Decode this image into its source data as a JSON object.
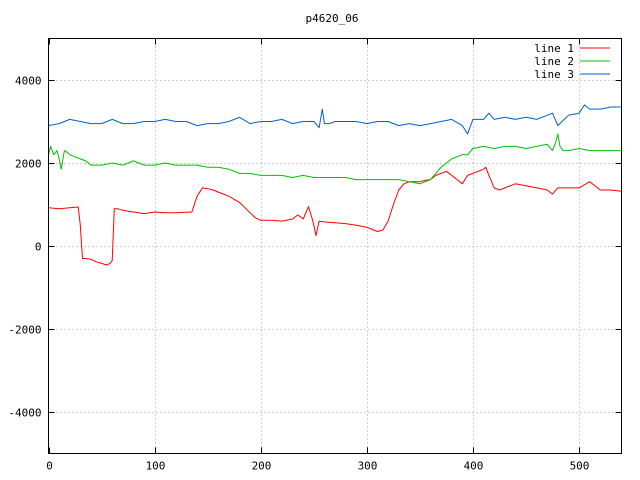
{
  "chart_data": {
    "type": "line",
    "title": "p4620_06",
    "xlabel": "",
    "ylabel": "",
    "xlim": [
      0,
      540
    ],
    "ylim": [
      -5000,
      5000
    ],
    "xticks": [
      0,
      100,
      200,
      300,
      400,
      500
    ],
    "yticks": [
      -4000,
      -2000,
      0,
      2000,
      4000
    ],
    "grid": true,
    "legend": "top-right",
    "series": [
      {
        "name": "line 1",
        "color": "#ff0000",
        "x": [
          0,
          10,
          20,
          28,
          30,
          32,
          35,
          40,
          45,
          50,
          55,
          58,
          60,
          62,
          65,
          70,
          80,
          90,
          100,
          110,
          120,
          135,
          140,
          145,
          150,
          155,
          160,
          170,
          180,
          190,
          195,
          200,
          210,
          220,
          230,
          235,
          240,
          245,
          248,
          250,
          252,
          255,
          260,
          270,
          280,
          290,
          300,
          305,
          310,
          315,
          320,
          325,
          330,
          335,
          340,
          345,
          350,
          355,
          360,
          365,
          370,
          375,
          380,
          385,
          390,
          395,
          400,
          405,
          410,
          412,
          415,
          420,
          425,
          430,
          440,
          450,
          460,
          470,
          475,
          480,
          490,
          500,
          510,
          520,
          530,
          540
        ],
        "values": [
          920,
          900,
          920,
          940,
          500,
          -300,
          -300,
          -320,
          -380,
          -420,
          -460,
          -420,
          -350,
          900,
          900,
          860,
          820,
          780,
          820,
          800,
          800,
          820,
          1200,
          1400,
          1380,
          1350,
          1300,
          1200,
          1050,
          800,
          680,
          620,
          620,
          600,
          650,
          750,
          650,
          950,
          700,
          500,
          250,
          600,
          580,
          560,
          540,
          500,
          450,
          400,
          350,
          380,
          600,
          1000,
          1350,
          1500,
          1550,
          1550,
          1550,
          1580,
          1600,
          1700,
          1750,
          1800,
          1700,
          1600,
          1500,
          1700,
          1750,
          1800,
          1850,
          1900,
          1700,
          1400,
          1350,
          1400,
          1500,
          1450,
          1400,
          1350,
          1250,
          1400,
          1400,
          1400,
          1550,
          1350,
          1350,
          1320
        ]
      },
      {
        "name": "line 2",
        "color": "#00c000",
        "x": [
          0,
          2,
          5,
          8,
          10,
          12,
          15,
          18,
          20,
          25,
          30,
          35,
          40,
          50,
          60,
          70,
          80,
          90,
          100,
          110,
          120,
          130,
          140,
          150,
          160,
          170,
          180,
          190,
          200,
          210,
          220,
          230,
          240,
          250,
          260,
          270,
          280,
          290,
          300,
          310,
          320,
          330,
          340,
          350,
          360,
          365,
          370,
          375,
          380,
          385,
          390,
          395,
          400,
          410,
          420,
          430,
          440,
          450,
          460,
          470,
          475,
          478,
          480,
          482,
          485,
          490,
          500,
          510,
          520,
          530,
          540
        ],
        "values": [
          2200,
          2400,
          2200,
          2300,
          2100,
          1850,
          2300,
          2250,
          2200,
          2150,
          2100,
          2050,
          1950,
          1950,
          2000,
          1950,
          2050,
          1950,
          1950,
          2000,
          1950,
          1950,
          1950,
          1900,
          1900,
          1850,
          1750,
          1750,
          1700,
          1700,
          1700,
          1650,
          1700,
          1650,
          1650,
          1650,
          1650,
          1600,
          1600,
          1600,
          1600,
          1600,
          1550,
          1500,
          1600,
          1750,
          1900,
          2000,
          2100,
          2150,
          2200,
          2200,
          2350,
          2400,
          2350,
          2400,
          2400,
          2350,
          2400,
          2450,
          2300,
          2500,
          2700,
          2400,
          2300,
          2300,
          2350,
          2300,
          2300,
          2300,
          2300
        ]
      },
      {
        "name": "line 3",
        "color": "#0060d0",
        "x": [
          0,
          10,
          20,
          30,
          40,
          50,
          60,
          70,
          80,
          90,
          100,
          110,
          120,
          130,
          140,
          150,
          160,
          170,
          180,
          190,
          200,
          210,
          220,
          230,
          240,
          250,
          255,
          258,
          260,
          265,
          270,
          280,
          290,
          300,
          310,
          320,
          330,
          340,
          350,
          360,
          370,
          380,
          390,
          395,
          400,
          410,
          415,
          420,
          430,
          440,
          450,
          460,
          470,
          475,
          480,
          490,
          500,
          505,
          510,
          520,
          530,
          540
        ],
        "values": [
          2900,
          2950,
          3050,
          3000,
          2950,
          2950,
          3050,
          2950,
          2950,
          3000,
          3000,
          3050,
          3000,
          3000,
          2900,
          2950,
          2950,
          3000,
          3100,
          2950,
          3000,
          3000,
          3050,
          2950,
          3000,
          3000,
          2850,
          3300,
          2950,
          2950,
          3000,
          3000,
          3000,
          2950,
          3000,
          3000,
          2900,
          2950,
          2900,
          2950,
          3000,
          3050,
          2900,
          2700,
          3050,
          3050,
          3200,
          3050,
          3100,
          3050,
          3100,
          3050,
          3150,
          3200,
          2900,
          3150,
          3200,
          3400,
          3300,
          3300,
          3350,
          3350
        ]
      }
    ]
  }
}
